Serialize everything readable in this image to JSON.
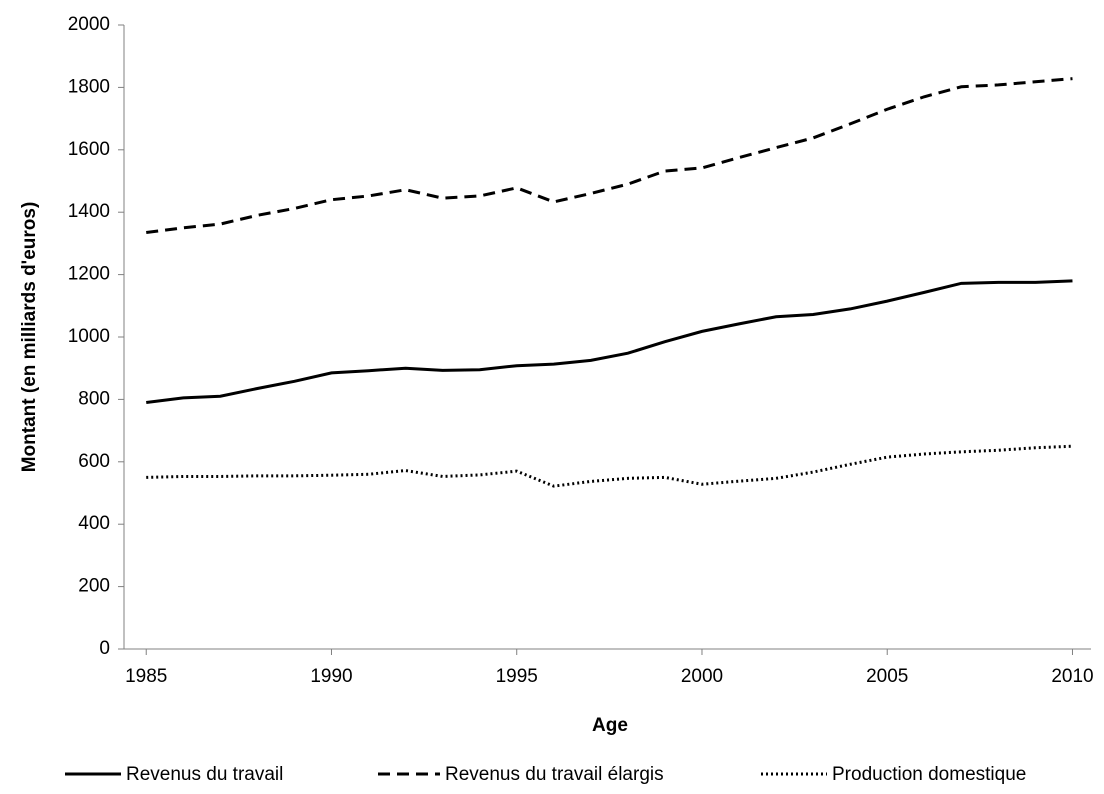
{
  "chart_data": {
    "type": "line",
    "x_label": "Age",
    "y_label": "Montant (en milliards d'euros)",
    "x": [
      1985,
      1986,
      1987,
      1988,
      1989,
      1990,
      1991,
      1992,
      1993,
      1994,
      1995,
      1996,
      1997,
      1998,
      1999,
      2000,
      2001,
      2002,
      2003,
      2004,
      2005,
      2006,
      2007,
      2008,
      2009,
      2010
    ],
    "series": [
      {
        "name": "Revenus du travail",
        "color": "#000000",
        "style": "solid",
        "values": [
          790,
          805,
          810,
          835,
          858,
          885,
          892,
          900,
          893,
          895,
          908,
          913,
          925,
          948,
          985,
          1018,
          1042,
          1065,
          1072,
          1090,
          1115,
          1143,
          1172,
          1175,
          1175,
          1180
        ]
      },
      {
        "name": "Revenus du travail élargis",
        "color": "#000000",
        "style": "dashed",
        "values": [
          1335,
          1350,
          1362,
          1390,
          1412,
          1440,
          1452,
          1472,
          1445,
          1452,
          1478,
          1433,
          1460,
          1490,
          1532,
          1542,
          1575,
          1607,
          1638,
          1683,
          1730,
          1770,
          1802,
          1808,
          1818,
          1828
        ]
      },
      {
        "name": "Production domestique",
        "color": "#000000",
        "style": "dotted",
        "values": [
          550,
          553,
          553,
          555,
          555,
          557,
          560,
          572,
          553,
          558,
          570,
          522,
          537,
          547,
          550,
          528,
          538,
          547,
          567,
          592,
          615,
          625,
          632,
          637,
          645,
          650
        ]
      }
    ],
    "xlim": [
      1984.4,
      2010.5
    ],
    "xticks": [
      1985,
      1990,
      1995,
      2000,
      2005,
      2010
    ],
    "ylim": [
      0,
      2000
    ],
    "yticks": [
      0,
      200,
      400,
      600,
      800,
      1000,
      1200,
      1400,
      1600,
      1800,
      2000
    ],
    "legend": "bottom"
  }
}
